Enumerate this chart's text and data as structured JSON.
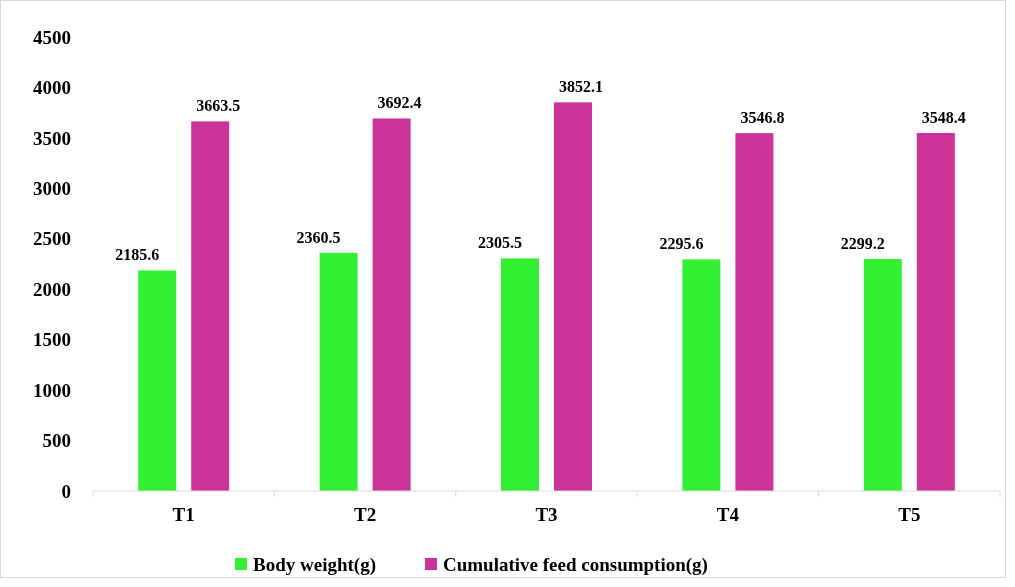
{
  "chart_data": {
    "type": "bar",
    "categories": [
      "T1",
      "T2",
      "T3",
      "T4",
      "T5"
    ],
    "series": [
      {
        "name": "Body weight(g)",
        "color": "#33f033",
        "values": [
          2185.6,
          2360.5,
          2305.5,
          2295.6,
          2299.2
        ]
      },
      {
        "name": "Cumulative feed consumption(g)",
        "color": "#cc3399",
        "values": [
          3663.5,
          3692.4,
          3852.1,
          3546.8,
          3548.4
        ]
      }
    ],
    "ylim": [
      0,
      4500
    ],
    "yticks": [
      0,
      500,
      1000,
      1500,
      2000,
      2500,
      3000,
      3500,
      4000,
      4500
    ],
    "data_labels": true,
    "grid": false,
    "legend": "bottom"
  }
}
